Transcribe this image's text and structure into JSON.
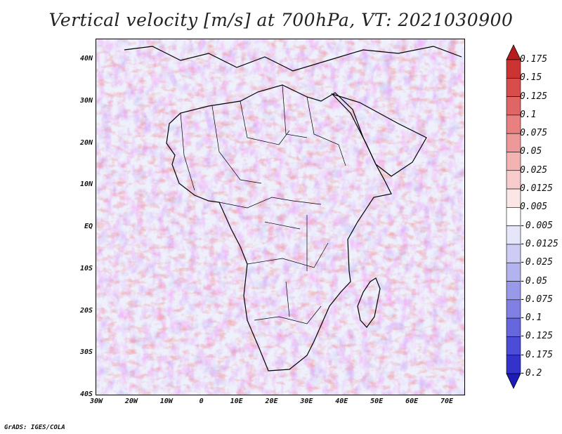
{
  "title": "Vertical velocity [m/s] at 700hPa, VT: 2021030900",
  "credit": "GrADS: IGES/COLA",
  "lat_labels": [
    "40N",
    "30N",
    "20N",
    "10N",
    "EQ",
    "10S",
    "20S",
    "30S",
    "40S"
  ],
  "lon_labels": [
    "30W",
    "20W",
    "10W",
    "0",
    "10E",
    "20E",
    "30E",
    "40E",
    "50E",
    "60E",
    "70E"
  ],
  "colorbar": {
    "labels": [
      "0.175",
      "0.15",
      "0.125",
      "0.1",
      "0.075",
      "0.05",
      "0.025",
      "0.0125",
      "0.005",
      "-0.005",
      "-0.0125",
      "-0.025",
      "-0.05",
      "-0.075",
      "-0.1",
      "-0.125",
      "-0.175",
      "-0.2"
    ],
    "colors": [
      "#b81c1c",
      "#cc3333",
      "#d94c4c",
      "#e06666",
      "#e88080",
      "#ee9999",
      "#f3b3b3",
      "#f8cccc",
      "#fbe6e6",
      "#ffffff",
      "#e6e6fb",
      "#ccccf5",
      "#b3b3f0",
      "#9999ea",
      "#8080e4",
      "#6666dd",
      "#4c4cd6",
      "#3333cc",
      "#1c1cb8"
    ]
  }
}
